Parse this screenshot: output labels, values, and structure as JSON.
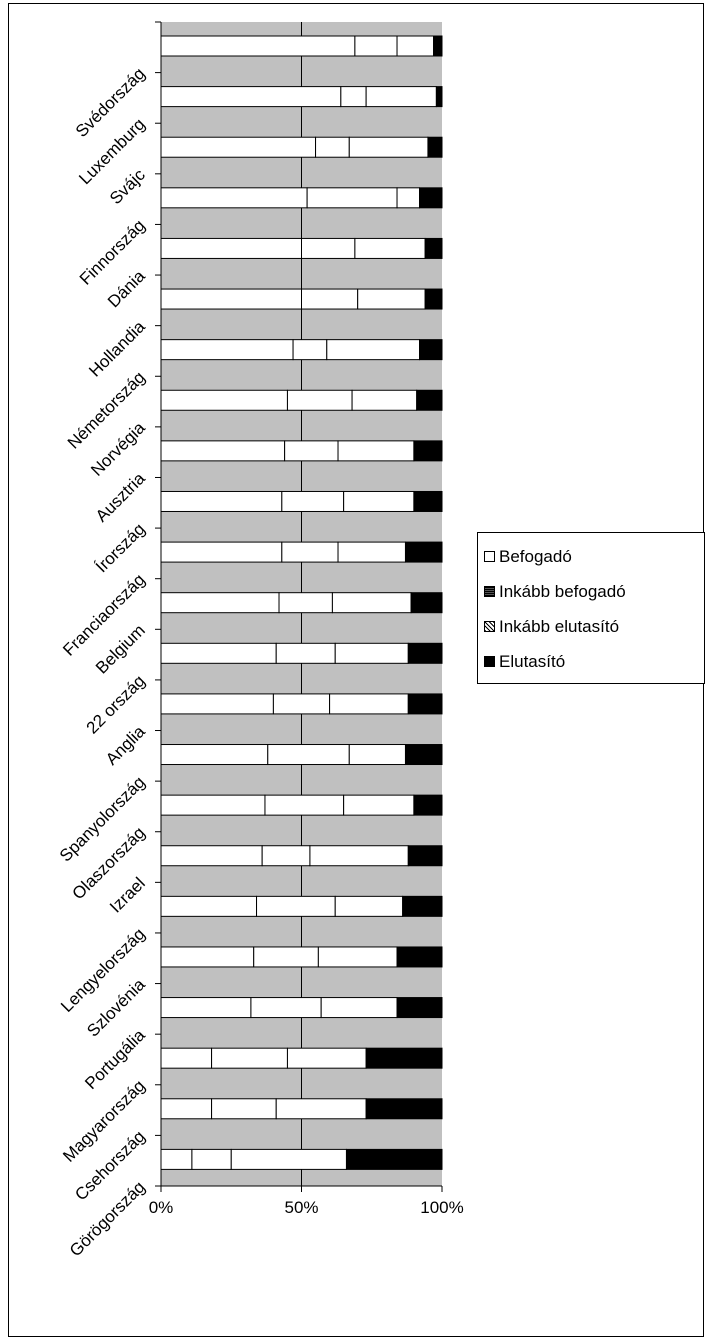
{
  "chart_data": {
    "type": "bar",
    "orientation": "horizontal",
    "stacked": "percent",
    "categories": [
      "Svédország",
      "Luxemburg",
      "Svájc",
      "Finnország",
      "Dánia",
      "Hollandia",
      "Németország",
      "Norvégia",
      "Ausztria",
      "Írország",
      "Franciaország",
      "Belgium",
      "22 ország",
      "Anglia",
      "Spanyolország",
      "Olaszország",
      "Izrael",
      "Lengyelország",
      "Szlovénia",
      "Portugália",
      "Magyarország",
      "Csehország",
      "Görögország"
    ],
    "series": [
      {
        "name": "Befogadó",
        "color": "#ffffff",
        "values": [
          69,
          64,
          55,
          52,
          50,
          50,
          47,
          45,
          44,
          43,
          43,
          42,
          41,
          40,
          38,
          37,
          36,
          34,
          33,
          32,
          18,
          18,
          11
        ]
      },
      {
        "name": "Inkább befogadó",
        "color": "#ffffff",
        "values": [
          15,
          9,
          12,
          32,
          19,
          20,
          12,
          23,
          19,
          22,
          20,
          19,
          21,
          20,
          29,
          28,
          17,
          28,
          23,
          25,
          27,
          23,
          14
        ]
      },
      {
        "name": "Inkább elutasító",
        "color": "#ffffff",
        "values": [
          13,
          25,
          28,
          8,
          25,
          24,
          33,
          23,
          27,
          25,
          24,
          28,
          26,
          28,
          20,
          25,
          35,
          24,
          28,
          27,
          28,
          32,
          41
        ]
      },
      {
        "name": "Elutasító",
        "color": "#000000",
        "values": [
          3,
          2,
          5,
          8,
          6,
          6,
          8,
          9,
          10,
          10,
          13,
          11,
          12,
          12,
          13,
          10,
          12,
          14,
          16,
          16,
          27,
          27,
          34
        ]
      }
    ],
    "xaxis": {
      "ticks": [
        "0%",
        "50%",
        "100%"
      ],
      "range": [
        0,
        100
      ]
    },
    "legend_position": "right",
    "plot_background": "#c0c0c0",
    "gridline_at": 50
  },
  "legend": {
    "items": [
      {
        "label": "Befogadó",
        "fill": "#ffffff"
      },
      {
        "label": "Inkább befogadó",
        "fill": "#222222"
      },
      {
        "label": "Inkább elutasító",
        "fill": "#777777"
      },
      {
        "label": "Elutasító",
        "fill": "#000000"
      }
    ]
  }
}
